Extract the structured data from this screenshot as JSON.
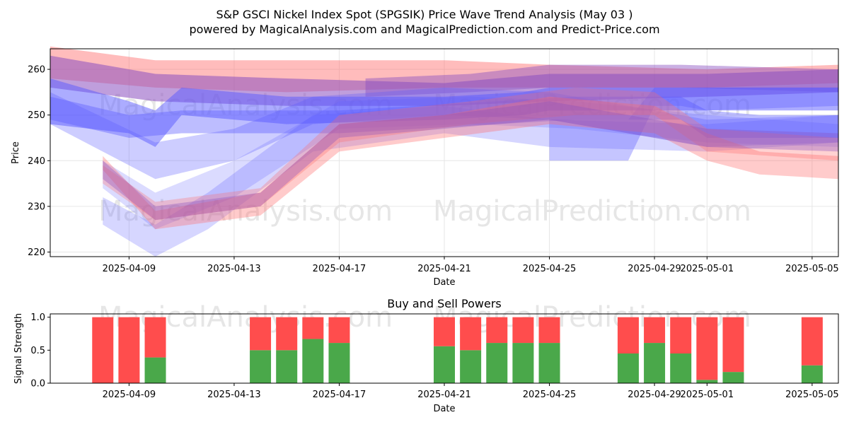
{
  "figure": {
    "title_line1": "S&P GSCI Nickel Index Spot (SPGSIK) Price Wave Trend Analysis (May 03 )",
    "title_line2": "powered by MagicalAnalysis.com and MagicalPrediction.com and Predict-Price.com",
    "watermark_left": "MagicalAnalysis.com",
    "watermark_right": "MagicalPrediction.com"
  },
  "colors": {
    "red_band": "#ff6b6b",
    "blue_band": "#5a5aff",
    "purple_band": "#8a4fc0",
    "buy": "#4aa84a",
    "sell": "#ff4d4d",
    "grid": "#e6e6e6",
    "watermark": "#d9d9d9"
  },
  "chart_data": [
    {
      "type": "area",
      "title": "",
      "xlabel": "Date",
      "ylabel": "Price",
      "ylim": [
        219,
        264.5
      ],
      "x_date_range": [
        "2025-04-06",
        "2025-05-06"
      ],
      "grid": true,
      "x_ticks": [
        "2025-04-09",
        "2025-04-13",
        "2025-04-17",
        "2025-04-21",
        "2025-04-25",
        "2025-04-29",
        "2025-05-01",
        "2025-05-05"
      ],
      "y_ticks": [
        220,
        230,
        240,
        250,
        260
      ],
      "bands": [
        {
          "color": "red",
          "opacity": 0.45,
          "points": [
            [
              "2025-04-06",
              258,
              265
            ],
            [
              "2025-04-10",
              256,
              262
            ],
            [
              "2025-04-15",
              255,
              262
            ],
            [
              "2025-04-21",
              256,
              262
            ],
            [
              "2025-04-25",
              256,
              261
            ],
            [
              "2025-05-01",
              256,
              260
            ],
            [
              "2025-05-06",
              257,
              261
            ]
          ]
        },
        {
          "color": "purple",
          "opacity": 0.55,
          "points": [
            [
              "2025-04-06",
              256,
              263
            ],
            [
              "2025-04-10",
              253,
              259
            ],
            [
              "2025-04-15",
              252,
              258
            ],
            [
              "2025-04-21",
              252,
              257
            ],
            [
              "2025-04-25",
              253,
              259
            ],
            [
              "2025-05-01",
              254,
              259
            ],
            [
              "2025-05-06",
              255,
              260
            ]
          ]
        },
        {
          "color": "purple",
          "opacity": 0.45,
          "points": [
            [
              "2025-04-18",
              254,
              258
            ],
            [
              "2025-04-22",
              255,
              259
            ],
            [
              "2025-04-25",
              256,
              261
            ],
            [
              "2025-04-30",
              256,
              261
            ],
            [
              "2025-05-06",
              255,
              260
            ]
          ]
        },
        {
          "color": "blue",
          "opacity": 0.5,
          "points": [
            [
              "2025-04-06",
              248,
              258
            ],
            [
              "2025-04-09",
              246,
              253
            ],
            [
              "2025-04-10",
              243,
              251
            ],
            [
              "2025-04-11",
              250,
              256
            ],
            [
              "2025-04-15",
              248,
              254
            ],
            [
              "2025-04-21",
              249,
              254
            ],
            [
              "2025-04-24",
              250,
              255
            ],
            [
              "2025-04-25",
              251,
              256
            ],
            [
              "2025-05-01",
              251,
              256
            ],
            [
              "2025-05-06",
              251,
              256
            ]
          ]
        },
        {
          "color": "blue",
          "opacity": 0.4,
          "points": [
            [
              "2025-04-06",
              249,
              254
            ],
            [
              "2025-04-09",
              245,
              250
            ],
            [
              "2025-04-11",
              246,
              251
            ],
            [
              "2025-04-17",
              246,
              251
            ],
            [
              "2025-04-23",
              248,
              253
            ],
            [
              "2025-04-26",
              249,
              254
            ],
            [
              "2025-04-30",
              249,
              254
            ],
            [
              "2025-05-01",
              245,
              251
            ],
            [
              "2025-05-03",
              245,
              250
            ],
            [
              "2025-05-06",
              245,
              250
            ]
          ]
        },
        {
          "color": "blue",
          "opacity": 0.35,
          "points": [
            [
              "2025-04-25",
              240,
              249
            ],
            [
              "2025-04-28",
              240,
              249
            ],
            [
              "2025-04-29",
              252,
              256
            ],
            [
              "2025-04-30",
              252,
              256
            ],
            [
              "2025-05-01",
              251,
              256
            ],
            [
              "2025-05-06",
              252,
              256
            ]
          ]
        },
        {
          "color": "blue",
          "opacity": 0.3,
          "points": [
            [
              "2025-04-06",
              248,
              255
            ],
            [
              "2025-04-10",
              236,
              244
            ],
            [
              "2025-04-13",
              240,
              247
            ],
            [
              "2025-04-16",
              248,
              254
            ],
            [
              "2025-04-21",
              250,
              256
            ],
            [
              "2025-04-25",
              249,
              255
            ],
            [
              "2025-05-01",
              243,
              249
            ],
            [
              "2025-05-06",
              244,
              250
            ]
          ]
        },
        {
          "color": "blue",
          "opacity": 0.25,
          "points": [
            [
              "2025-04-08",
              226,
              232
            ],
            [
              "2025-04-10",
              219,
              226
            ],
            [
              "2025-04-12",
              225,
              233
            ],
            [
              "2025-04-16",
              242,
              250
            ],
            [
              "2025-04-21",
              246,
              252
            ],
            [
              "2025-04-25",
              243,
              249
            ],
            [
              "2025-05-01",
              242,
              248
            ],
            [
              "2025-05-06",
              244,
              250
            ]
          ]
        },
        {
          "color": "blue",
          "opacity": 0.22,
          "points": [
            [
              "2025-04-08",
              234,
              240
            ],
            [
              "2025-04-10",
              225,
              233
            ],
            [
              "2025-04-13",
              232,
              240
            ],
            [
              "2025-04-17",
              247,
              253
            ],
            [
              "2025-04-22",
              248,
              254
            ],
            [
              "2025-04-26",
              247,
              253
            ],
            [
              "2025-05-01",
              244,
              250
            ],
            [
              "2025-05-06",
              243,
              248
            ]
          ]
        },
        {
          "color": "red",
          "opacity": 0.35,
          "points": [
            [
              "2025-04-08",
              238,
              241
            ],
            [
              "2025-04-10",
              225,
              229
            ],
            [
              "2025-04-14",
              228,
              233
            ],
            [
              "2025-04-17",
              242,
              248
            ],
            [
              "2025-04-21",
              245,
              250
            ],
            [
              "2025-04-25",
              248,
              254
            ],
            [
              "2025-04-29",
              246,
              252
            ],
            [
              "2025-05-01",
              240,
              246
            ],
            [
              "2025-05-03",
              237,
              242
            ],
            [
              "2025-05-06",
              236,
              241
            ]
          ]
        },
        {
          "color": "red",
          "opacity": 0.3,
          "points": [
            [
              "2025-04-08",
              235,
              239
            ],
            [
              "2025-04-10",
              227,
              231
            ],
            [
              "2025-04-14",
              230,
              234
            ],
            [
              "2025-04-17",
              244,
              250
            ],
            [
              "2025-04-22",
              248,
              253
            ],
            [
              "2025-04-26",
              250,
              256
            ],
            [
              "2025-04-29",
              250,
              255
            ],
            [
              "2025-05-01",
              242,
              247
            ],
            [
              "2025-05-06",
              240,
              245
            ]
          ]
        },
        {
          "color": "purple",
          "opacity": 0.35,
          "points": [
            [
              "2025-04-08",
              236,
              240
            ],
            [
              "2025-04-10",
              227,
              230
            ],
            [
              "2025-04-14",
              230,
              233
            ],
            [
              "2025-04-17",
              245,
              248
            ],
            [
              "2025-04-21",
              247,
              250
            ],
            [
              "2025-04-25",
              249,
              253
            ],
            [
              "2025-05-01",
              243,
              247
            ],
            [
              "2025-05-06",
              242,
              246
            ]
          ]
        }
      ]
    },
    {
      "type": "bar",
      "title": "Buy and Sell Powers",
      "xlabel": "Date",
      "ylabel": "Signal Strength",
      "ylim": [
        0,
        1.05
      ],
      "x_date_range": [
        "2025-04-06",
        "2025-05-06"
      ],
      "x_ticks": [
        "2025-04-09",
        "2025-04-13",
        "2025-04-17",
        "2025-04-21",
        "2025-04-25",
        "2025-04-29",
        "2025-05-01",
        "2025-05-05"
      ],
      "y_ticks": [
        "0.0",
        "0.5",
        "1.0"
      ],
      "categories": [
        "2025-04-08",
        "2025-04-09",
        "2025-04-10",
        "2025-04-14",
        "2025-04-15",
        "2025-04-16",
        "2025-04-17",
        "2025-04-21",
        "2025-04-22",
        "2025-04-23",
        "2025-04-24",
        "2025-04-25",
        "2025-04-28",
        "2025-04-29",
        "2025-04-30",
        "2025-05-01",
        "2025-05-02",
        "2025-05-05"
      ],
      "series": [
        {
          "name": "buy",
          "values": [
            0,
            0,
            0.39,
            0.5,
            0.5,
            0.67,
            0.61,
            0.56,
            0.5,
            0.61,
            0.61,
            0.61,
            0.45,
            0.61,
            0.45,
            0.05,
            0.17,
            0.27
          ]
        },
        {
          "name": "sell",
          "values": [
            1,
            1,
            0.61,
            0.5,
            0.5,
            0.33,
            0.39,
            0.44,
            0.5,
            0.39,
            0.39,
            0.39,
            0.55,
            0.39,
            0.55,
            0.95,
            0.83,
            0.73
          ]
        }
      ]
    }
  ]
}
